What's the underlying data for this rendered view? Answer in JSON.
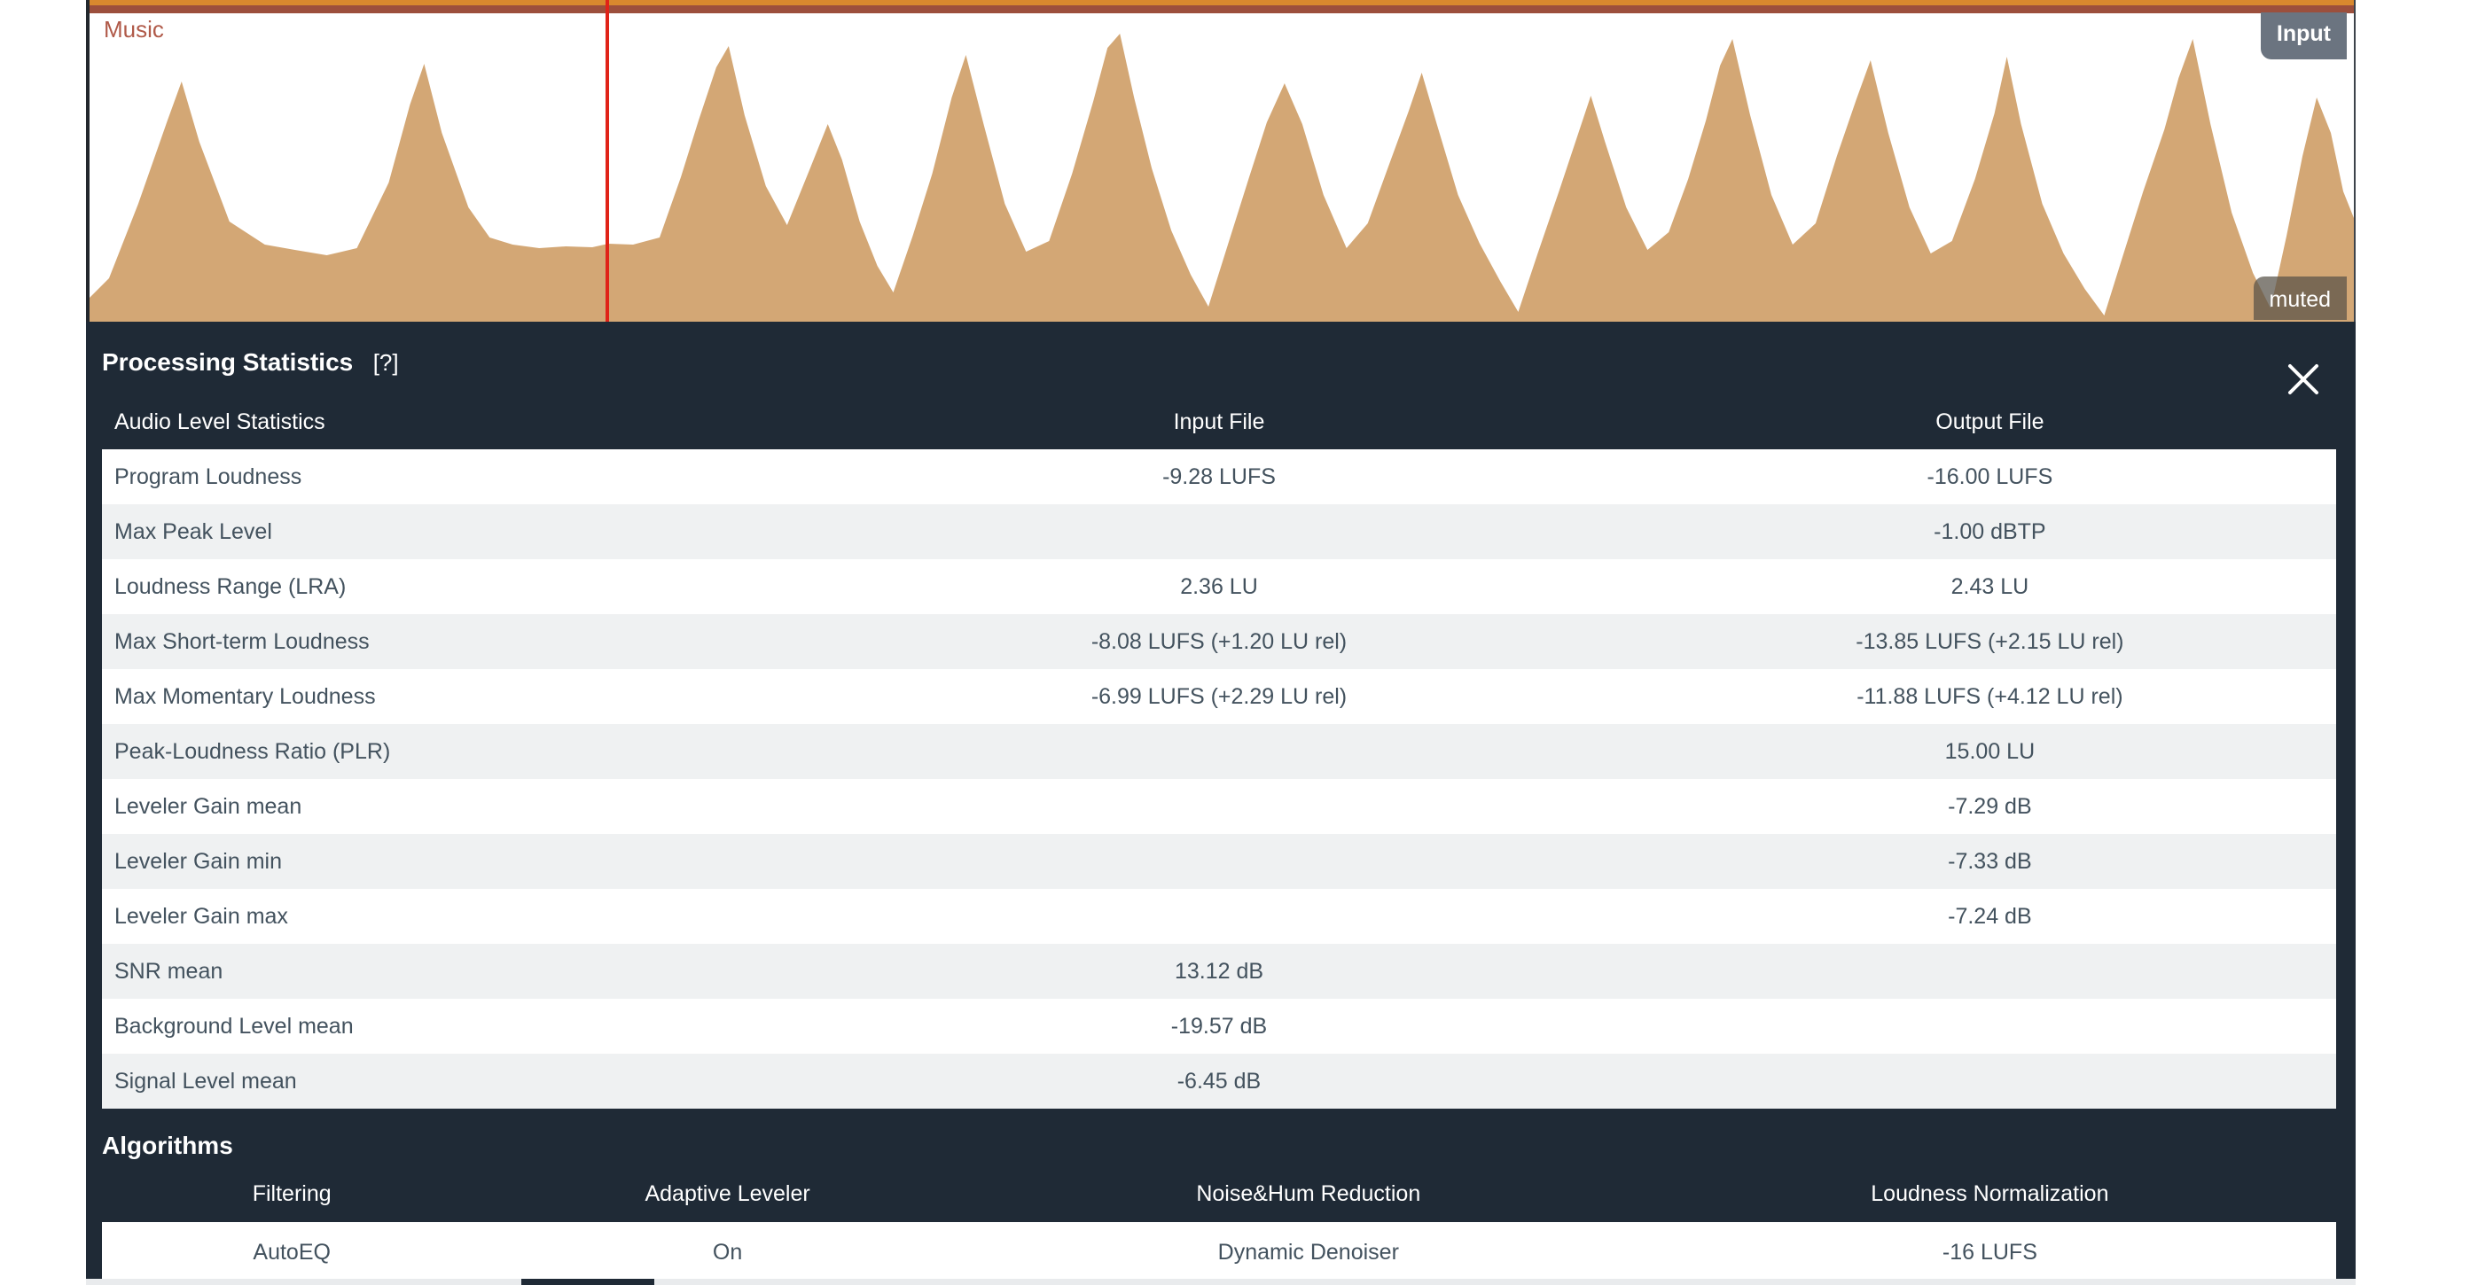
{
  "colors": {
    "page_bg": "#ffffff",
    "accent_orange": "#d8882e",
    "maroon_line": "#9c4f3c",
    "track_label": "#b05a49",
    "waveform_fill": "#d3a775",
    "playhead_red": "#e02318",
    "badge_gray": "#6b7480",
    "panel_bg": "#1f2a36",
    "row_white": "#ffffff",
    "row_gray": "#eff1f2",
    "cell_text": "#43525e",
    "page_strip": "#e9ebed"
  },
  "icons": {
    "close": "x-cross"
  },
  "player": {
    "track_label": "Music",
    "input_badge_label": "Input",
    "muted_badge_label": "muted",
    "waveform": {
      "points": [
        [
          0,
          318
        ],
        [
          22,
          296
        ],
        [
          55,
          212
        ],
        [
          88,
          118
        ],
        [
          104,
          74
        ],
        [
          124,
          142
        ],
        [
          158,
          232
        ],
        [
          198,
          258
        ],
        [
          232,
          264
        ],
        [
          268,
          270
        ],
        [
          302,
          262
        ],
        [
          338,
          188
        ],
        [
          362,
          100
        ],
        [
          378,
          54
        ],
        [
          398,
          132
        ],
        [
          428,
          216
        ],
        [
          452,
          250
        ],
        [
          478,
          258
        ],
        [
          508,
          262
        ],
        [
          538,
          260
        ],
        [
          568,
          261
        ],
        [
          586,
          257
        ],
        [
          614,
          258
        ],
        [
          644,
          250
        ],
        [
          668,
          182
        ],
        [
          688,
          118
        ],
        [
          708,
          58
        ],
        [
          722,
          34
        ],
        [
          740,
          112
        ],
        [
          764,
          192
        ],
        [
          788,
          236
        ],
        [
          814,
          172
        ],
        [
          834,
          122
        ],
        [
          850,
          162
        ],
        [
          870,
          232
        ],
        [
          890,
          282
        ],
        [
          908,
          312
        ],
        [
          930,
          248
        ],
        [
          952,
          178
        ],
        [
          974,
          92
        ],
        [
          990,
          44
        ],
        [
          1010,
          122
        ],
        [
          1034,
          212
        ],
        [
          1058,
          266
        ],
        [
          1084,
          254
        ],
        [
          1110,
          178
        ],
        [
          1134,
          96
        ],
        [
          1150,
          36
        ],
        [
          1164,
          20
        ],
        [
          1180,
          92
        ],
        [
          1200,
          172
        ],
        [
          1222,
          242
        ],
        [
          1244,
          292
        ],
        [
          1264,
          328
        ],
        [
          1286,
          258
        ],
        [
          1310,
          182
        ],
        [
          1330,
          120
        ],
        [
          1350,
          76
        ],
        [
          1370,
          122
        ],
        [
          1394,
          202
        ],
        [
          1420,
          262
        ],
        [
          1444,
          234
        ],
        [
          1468,
          168
        ],
        [
          1490,
          108
        ],
        [
          1505,
          64
        ],
        [
          1522,
          122
        ],
        [
          1546,
          202
        ],
        [
          1570,
          256
        ],
        [
          1594,
          300
        ],
        [
          1614,
          334
        ],
        [
          1636,
          268
        ],
        [
          1660,
          198
        ],
        [
          1680,
          138
        ],
        [
          1696,
          90
        ],
        [
          1712,
          142
        ],
        [
          1736,
          216
        ],
        [
          1760,
          264
        ],
        [
          1784,
          244
        ],
        [
          1806,
          184
        ],
        [
          1826,
          118
        ],
        [
          1842,
          56
        ],
        [
          1856,
          26
        ],
        [
          1876,
          112
        ],
        [
          1900,
          202
        ],
        [
          1924,
          258
        ],
        [
          1950,
          234
        ],
        [
          1974,
          158
        ],
        [
          1996,
          94
        ],
        [
          2012,
          50
        ],
        [
          2032,
          132
        ],
        [
          2056,
          216
        ],
        [
          2080,
          268
        ],
        [
          2104,
          254
        ],
        [
          2130,
          184
        ],
        [
          2152,
          110
        ],
        [
          2166,
          46
        ],
        [
          2182,
          122
        ],
        [
          2206,
          212
        ],
        [
          2230,
          268
        ],
        [
          2254,
          308
        ],
        [
          2276,
          338
        ],
        [
          2296,
          274
        ],
        [
          2320,
          198
        ],
        [
          2344,
          128
        ],
        [
          2360,
          70
        ],
        [
          2376,
          26
        ],
        [
          2396,
          122
        ],
        [
          2420,
          222
        ],
        [
          2444,
          290
        ],
        [
          2464,
          330
        ],
        [
          2482,
          248
        ],
        [
          2500,
          158
        ],
        [
          2516,
          92
        ],
        [
          2532,
          132
        ],
        [
          2546,
          198
        ],
        [
          2558,
          228
        ]
      ]
    }
  },
  "panel": {
    "title": "Processing Statistics",
    "help_label": "[?]",
    "stats_table": {
      "headers": [
        "Audio Level Statistics",
        "Input File",
        "Output File"
      ],
      "rows": [
        {
          "label": "Program Loudness",
          "input": "-9.28 LUFS",
          "output": "-16.00 LUFS"
        },
        {
          "label": "Max Peak Level",
          "input": "",
          "output": "-1.00 dBTP"
        },
        {
          "label": "Loudness Range (LRA)",
          "input": "2.36 LU",
          "output": "2.43 LU"
        },
        {
          "label": "Max Short-term Loudness",
          "input": "-8.08 LUFS (+1.20 LU rel)",
          "output": "-13.85 LUFS (+2.15 LU rel)"
        },
        {
          "label": "Max Momentary Loudness",
          "input": "-6.99 LUFS (+2.29 LU rel)",
          "output": "-11.88 LUFS (+4.12 LU rel)"
        },
        {
          "label": "Peak-Loudness Ratio (PLR)",
          "input": "",
          "output": "15.00 LU"
        },
        {
          "label": "Leveler Gain mean",
          "input": "",
          "output": "-7.29 dB"
        },
        {
          "label": "Leveler Gain min",
          "input": "",
          "output": "-7.33 dB"
        },
        {
          "label": "Leveler Gain max",
          "input": "",
          "output": "-7.24 dB"
        },
        {
          "label": "SNR mean",
          "input": "13.12 dB",
          "output": ""
        },
        {
          "label": "Background Level mean",
          "input": "-19.57 dB",
          "output": ""
        },
        {
          "label": "Signal Level mean",
          "input": "-6.45 dB",
          "output": ""
        }
      ]
    },
    "algorithms": {
      "title": "Algorithms",
      "headers": [
        "Filtering",
        "Adaptive Leveler",
        "Noise&Hum Reduction",
        "Loudness Normalization"
      ],
      "values": [
        "AutoEQ",
        "On",
        "Dynamic Denoiser",
        "-16 LUFS"
      ]
    }
  }
}
